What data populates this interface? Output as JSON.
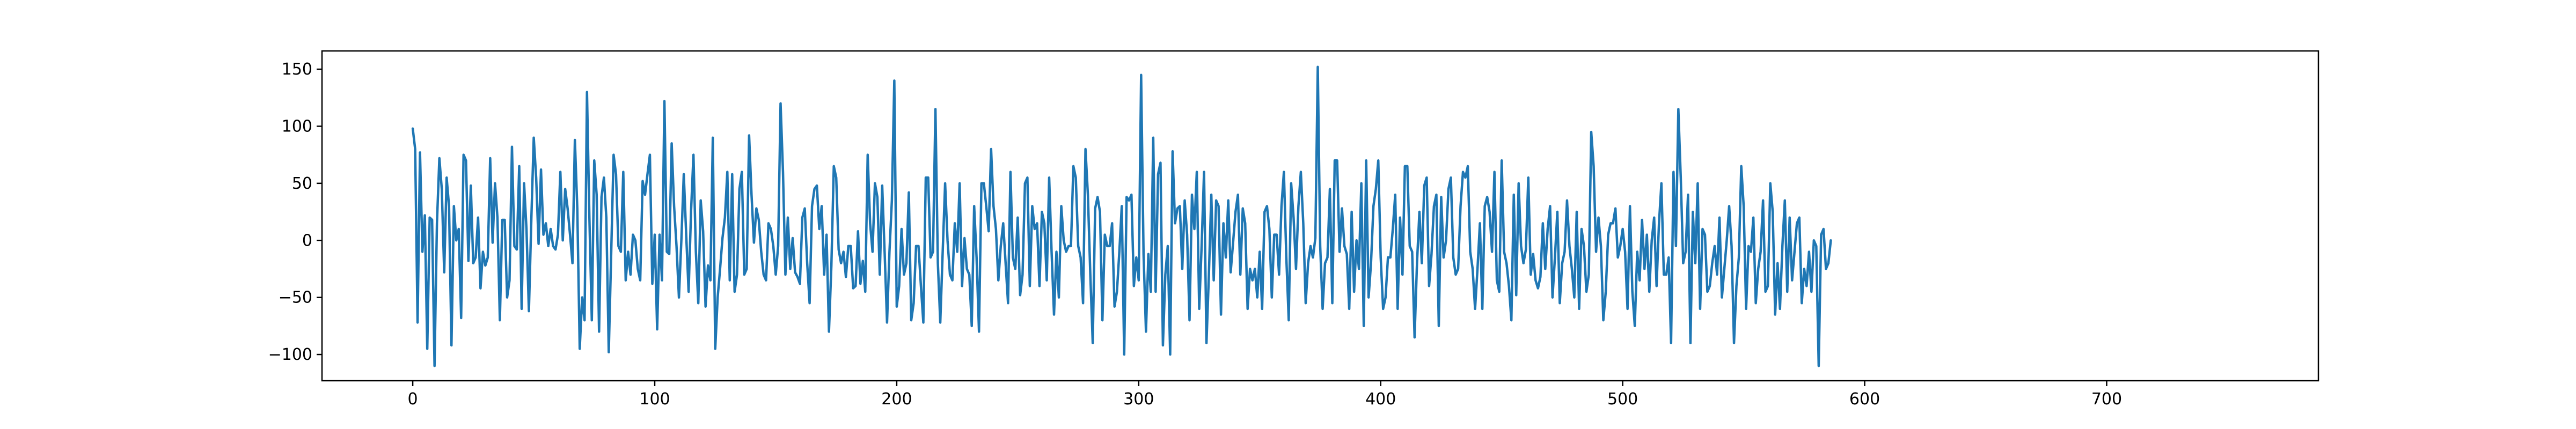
{
  "colors": {
    "series": "#1f77b4",
    "axes": "#000000",
    "background": "#ffffff"
  },
  "chart_data": {
    "type": "line",
    "title": "",
    "xlabel": "",
    "ylabel": "",
    "grid": false,
    "legend": "none",
    "xlim": [
      -37.5,
      787.5
    ],
    "ylim": [
      -123,
      166
    ],
    "xticks": [
      0,
      100,
      200,
      300,
      400,
      500,
      600,
      700
    ],
    "yticks": [
      -100,
      -50,
      0,
      50,
      100,
      150
    ],
    "x_start": 0,
    "x_step": 1,
    "series": [
      {
        "values": [
          98,
          80,
          -72,
          77,
          -10,
          22,
          -95,
          20,
          18,
          -110,
          15,
          72,
          45,
          -28,
          55,
          30,
          -92,
          30,
          0,
          10,
          -68,
          75,
          70,
          -18,
          48,
          -20,
          -15,
          20,
          -42,
          -10,
          -22,
          -15,
          72,
          -2,
          50,
          20,
          -70,
          18,
          18,
          -50,
          -35,
          82,
          -5,
          -8,
          65,
          -60,
          50,
          10,
          -62,
          18,
          90,
          55,
          -3,
          62,
          5,
          15,
          -5,
          10,
          -5,
          -8,
          5,
          60,
          0,
          45,
          28,
          5,
          -20,
          88,
          28,
          -95,
          -50,
          -70,
          130,
          20,
          -70,
          70,
          40,
          -80,
          38,
          55,
          20,
          -98,
          -12,
          75,
          58,
          -5,
          -10,
          60,
          -35,
          -10,
          -30,
          5,
          0,
          -25,
          -35,
          52,
          40,
          58,
          75,
          -38,
          5,
          -78,
          5,
          -35,
          122,
          -10,
          -12,
          85,
          30,
          -5,
          -50,
          0,
          58,
          5,
          -45,
          25,
          75,
          -10,
          -55,
          35,
          8,
          -58,
          -22,
          -35,
          90,
          -95,
          -50,
          -25,
          2,
          20,
          60,
          -35,
          58,
          -45,
          -30,
          45,
          60,
          -30,
          -25,
          92,
          40,
          -2,
          28,
          18,
          -10,
          -30,
          -35,
          15,
          10,
          -5,
          -30,
          -5,
          120,
          60,
          -30,
          20,
          -25,
          2,
          -28,
          -32,
          -38,
          20,
          28,
          -20,
          -55,
          30,
          45,
          48,
          10,
          30,
          -30,
          5,
          -80,
          -22,
          65,
          55,
          -8,
          -20,
          -10,
          -32,
          -5,
          -5,
          -42,
          -40,
          8,
          -38,
          -18,
          -45,
          75,
          15,
          -10,
          50,
          38,
          -30,
          48,
          -10,
          -72,
          -10,
          35,
          140,
          -58,
          -40,
          10,
          -30,
          -20,
          42,
          -70,
          -55,
          -5,
          -5,
          -40,
          -72,
          55,
          55,
          -15,
          -10,
          115,
          -20,
          -72,
          -10,
          50,
          0,
          -30,
          -35,
          15,
          -10,
          50,
          -40,
          2,
          -25,
          -30,
          -75,
          30,
          -15,
          -80,
          50,
          50,
          30,
          8,
          80,
          30,
          10,
          -35,
          -5,
          15,
          -20,
          -55,
          60,
          -15,
          -25,
          20,
          -48,
          -30,
          50,
          55,
          -40,
          30,
          10,
          15,
          -40,
          25,
          15,
          -35,
          55,
          -10,
          -65,
          -10,
          -50,
          30,
          0,
          -10,
          -5,
          -5,
          65,
          55,
          -5,
          -15,
          -55,
          80,
          40,
          -30,
          -90,
          28,
          38,
          25,
          -70,
          5,
          -5,
          -5,
          15,
          -58,
          -45,
          -10,
          30,
          -100,
          38,
          35,
          40,
          -40,
          -15,
          -35,
          145,
          -12,
          -80,
          -12,
          -45,
          90,
          -45,
          58,
          68,
          -92,
          -30,
          -5,
          -100,
          78,
          15,
          28,
          30,
          -25,
          35,
          5,
          -70,
          40,
          10,
          60,
          -60,
          -5,
          60,
          -90,
          -30,
          40,
          -35,
          35,
          30,
          -65,
          15,
          -15,
          35,
          -28,
          -2,
          25,
          40,
          -30,
          28,
          15,
          -60,
          -25,
          -35,
          -25,
          -50,
          -10,
          -60,
          25,
          30,
          10,
          -50,
          5,
          5,
          -30,
          30,
          60,
          -15,
          -70,
          50,
          20,
          -25,
          30,
          60,
          15,
          -55,
          -20,
          -5,
          -15,
          2,
          152,
          -5,
          -60,
          -20,
          -15,
          45,
          -55,
          70,
          70,
          -10,
          28,
          -5,
          -12,
          -60,
          25,
          -45,
          0,
          -25,
          50,
          -75,
          70,
          -50,
          -20,
          30,
          45,
          70,
          -15,
          -60,
          -50,
          -15,
          -15,
          10,
          40,
          -60,
          20,
          -30,
          65,
          65,
          -5,
          -10,
          -85,
          -20,
          25,
          -20,
          48,
          55,
          -40,
          -12,
          30,
          40,
          -75,
          38,
          -15,
          0,
          45,
          55,
          -15,
          -30,
          -25,
          30,
          60,
          55,
          65,
          -10,
          -25,
          -60,
          -25,
          15,
          -60,
          30,
          38,
          25,
          -10,
          60,
          -35,
          -45,
          70,
          -10,
          -20,
          -40,
          -70,
          40,
          -48,
          50,
          -5,
          -20,
          -8,
          55,
          -30,
          -12,
          -35,
          -42,
          -32,
          15,
          -25,
          10,
          30,
          -50,
          -15,
          25,
          -55,
          -20,
          -10,
          35,
          -5,
          -25,
          -50,
          25,
          -60,
          10,
          -5,
          -45,
          -30,
          95,
          65,
          -10,
          20,
          -5,
          -70,
          -45,
          5,
          15,
          15,
          28,
          -15,
          -5,
          10,
          -10,
          -60,
          30,
          -45,
          -75,
          -10,
          -35,
          18,
          -25,
          5,
          -45,
          0,
          20,
          -40,
          15,
          50,
          -30,
          -30,
          -15,
          -90,
          60,
          -5,
          115,
          55,
          -20,
          -10,
          40,
          -90,
          25,
          -20,
          50,
          -60,
          10,
          5,
          -45,
          -40,
          -20,
          -5,
          -30,
          20,
          -50,
          -25,
          0,
          30,
          -5,
          -90,
          -40,
          -15,
          65,
          30,
          -60,
          -5,
          -10,
          20,
          -55,
          -25,
          -10,
          35,
          -45,
          -40,
          50,
          25,
          -65,
          -20,
          -60,
          -5,
          35,
          -45,
          20,
          -35,
          -10,
          15,
          20,
          -55,
          -25,
          -40,
          -10,
          -45,
          0,
          -5,
          -110,
          5,
          10,
          -25,
          -20,
          0
        ]
      }
    ]
  }
}
